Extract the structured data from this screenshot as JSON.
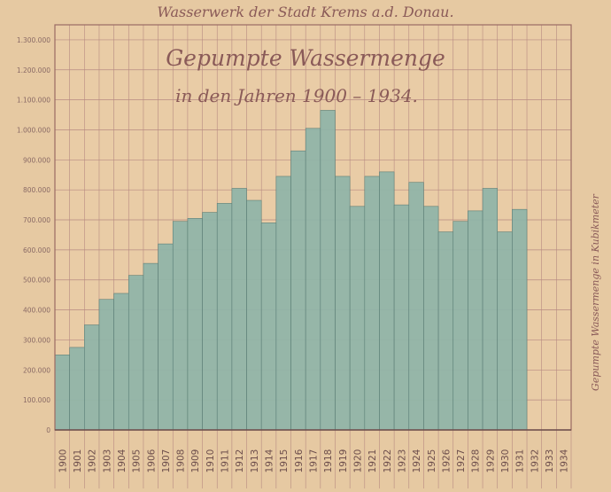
{
  "header": "Wasserwerk der Stadt Krems a.d. Donau.",
  "chart_data": {
    "type": "bar",
    "title": "Gepumpte Wassermenge",
    "subtitle": "in den Jahren 1900 – 1934.",
    "ylabel": "Gepumpte Wassermenge in Kubikmeter",
    "xlabel": "",
    "categories": [
      "1900",
      "1901",
      "1902",
      "1903",
      "1904",
      "1905",
      "1906",
      "1907",
      "1908",
      "1909",
      "1910",
      "1911",
      "1912",
      "1913",
      "1914",
      "1915",
      "1916",
      "1917",
      "1918",
      "1919",
      "1920",
      "1921",
      "1922",
      "1923",
      "1924",
      "1925",
      "1926",
      "1927",
      "1928",
      "1929",
      "1930",
      "1931",
      "1932",
      "1933",
      "1934"
    ],
    "values": [
      250000,
      275000,
      350000,
      435000,
      455000,
      515000,
      555000,
      620000,
      695000,
      705000,
      725000,
      755000,
      805000,
      765000,
      690000,
      845000,
      930000,
      1005000,
      1065000,
      845000,
      745000,
      845000,
      860000,
      750000,
      825000,
      745000,
      660000,
      695000,
      730000,
      805000,
      660000,
      735000,
      null,
      null,
      null
    ],
    "yticks": [
      0,
      100000,
      200000,
      300000,
      400000,
      500000,
      600000,
      700000,
      800000,
      900000,
      1000000,
      1100000,
      1200000,
      1300000
    ],
    "ytick_labels": [
      "0",
      "100.000",
      "200.000",
      "300.000",
      "400.000",
      "500.000",
      "600.000",
      "700.000",
      "800.000",
      "900.000",
      "1.000.000",
      "1.100.000",
      "1.200.000",
      "1.300.000"
    ],
    "ylim": [
      0,
      1350000
    ],
    "grid": true,
    "colors": {
      "bar": "#8eb4a8",
      "bar_edge": "#5c7e76",
      "grid": "#b78a82",
      "frame": "#9a6a64",
      "text": "#8a5a58"
    }
  }
}
